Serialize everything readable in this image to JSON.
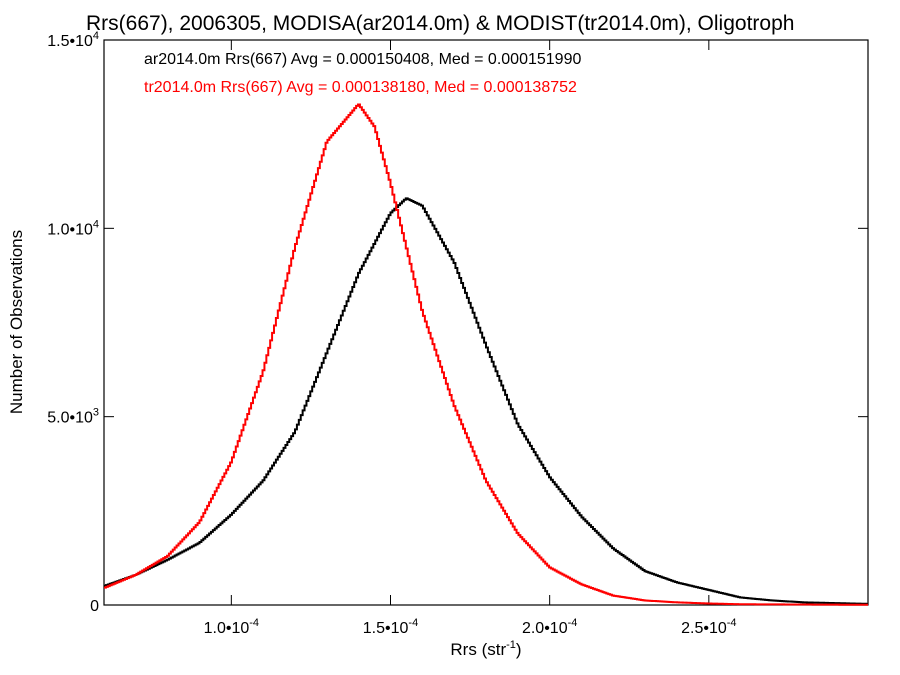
{
  "chart_data": {
    "type": "line",
    "title": "Rrs(667), 2006305, MODISA(ar2014.0m) & MODIST(tr2014.0m), Oligotroph",
    "xlabel": "Rrs (str",
    "xlabel_sup": "-1",
    "xlabel_end": ")",
    "ylabel": "Number of Observations",
    "xlim": [
      6e-05,
      0.0003
    ],
    "ylim": [
      0,
      15000
    ],
    "grid": false,
    "legend_placement": "top-left",
    "x_ticks": [
      {
        "value": 0.0001,
        "mantissa": "1.0•10",
        "exp": "-4"
      },
      {
        "value": 0.00015,
        "mantissa": "1.5•10",
        "exp": "-4"
      },
      {
        "value": 0.0002,
        "mantissa": "2.0•10",
        "exp": "-4"
      },
      {
        "value": 0.00025,
        "mantissa": "2.5•10",
        "exp": "-4"
      }
    ],
    "y_ticks": [
      {
        "value": 0,
        "mantissa": "0",
        "exp": ""
      },
      {
        "value": 5000,
        "mantissa": "5.0•10",
        "exp": "3"
      },
      {
        "value": 10000,
        "mantissa": "1.0•10",
        "exp": "4"
      },
      {
        "value": 15000,
        "mantissa": "1.5•10",
        "exp": "4"
      }
    ],
    "series": [
      {
        "name": "ar2014.0m",
        "legend": "ar2014.0m Rrs(667) Avg = 0.000150408, Med = 0.000151990",
        "color": "#000000",
        "x": [
          6e-05,
          7e-05,
          8e-05,
          9e-05,
          0.0001,
          0.00011,
          0.00012,
          0.00013,
          0.00014,
          0.00015,
          0.000155,
          0.00016,
          0.00017,
          0.00018,
          0.00019,
          0.0002,
          0.00021,
          0.00022,
          0.00023,
          0.00024,
          0.00025,
          0.00026,
          0.00027,
          0.00028,
          0.0003
        ],
        "y": [
          500,
          800,
          1200,
          1650,
          2400,
          3300,
          4600,
          6700,
          8800,
          10400,
          10800,
          10600,
          9100,
          6900,
          4800,
          3400,
          2350,
          1500,
          900,
          600,
          400,
          200,
          120,
          70,
          30
        ]
      },
      {
        "name": "tr2014.0m",
        "legend": "tr2014.0m Rrs(667) Avg = 0.000138180, Med = 0.000138752",
        "color": "#ff0000",
        "x": [
          6e-05,
          7e-05,
          8e-05,
          9e-05,
          0.0001,
          0.00011,
          0.00012,
          0.00013,
          0.00014,
          0.000145,
          0.00015,
          0.000155,
          0.00016,
          0.00017,
          0.00018,
          0.00019,
          0.0002,
          0.00021,
          0.00022,
          0.00023,
          0.00024,
          0.00025,
          0.00026,
          0.0003
        ],
        "y": [
          450,
          800,
          1300,
          2200,
          3800,
          6200,
          9500,
          12300,
          13300,
          12700,
          11200,
          9500,
          7800,
          5300,
          3300,
          1900,
          1000,
          550,
          250,
          120,
          70,
          40,
          20,
          5
        ]
      }
    ]
  }
}
